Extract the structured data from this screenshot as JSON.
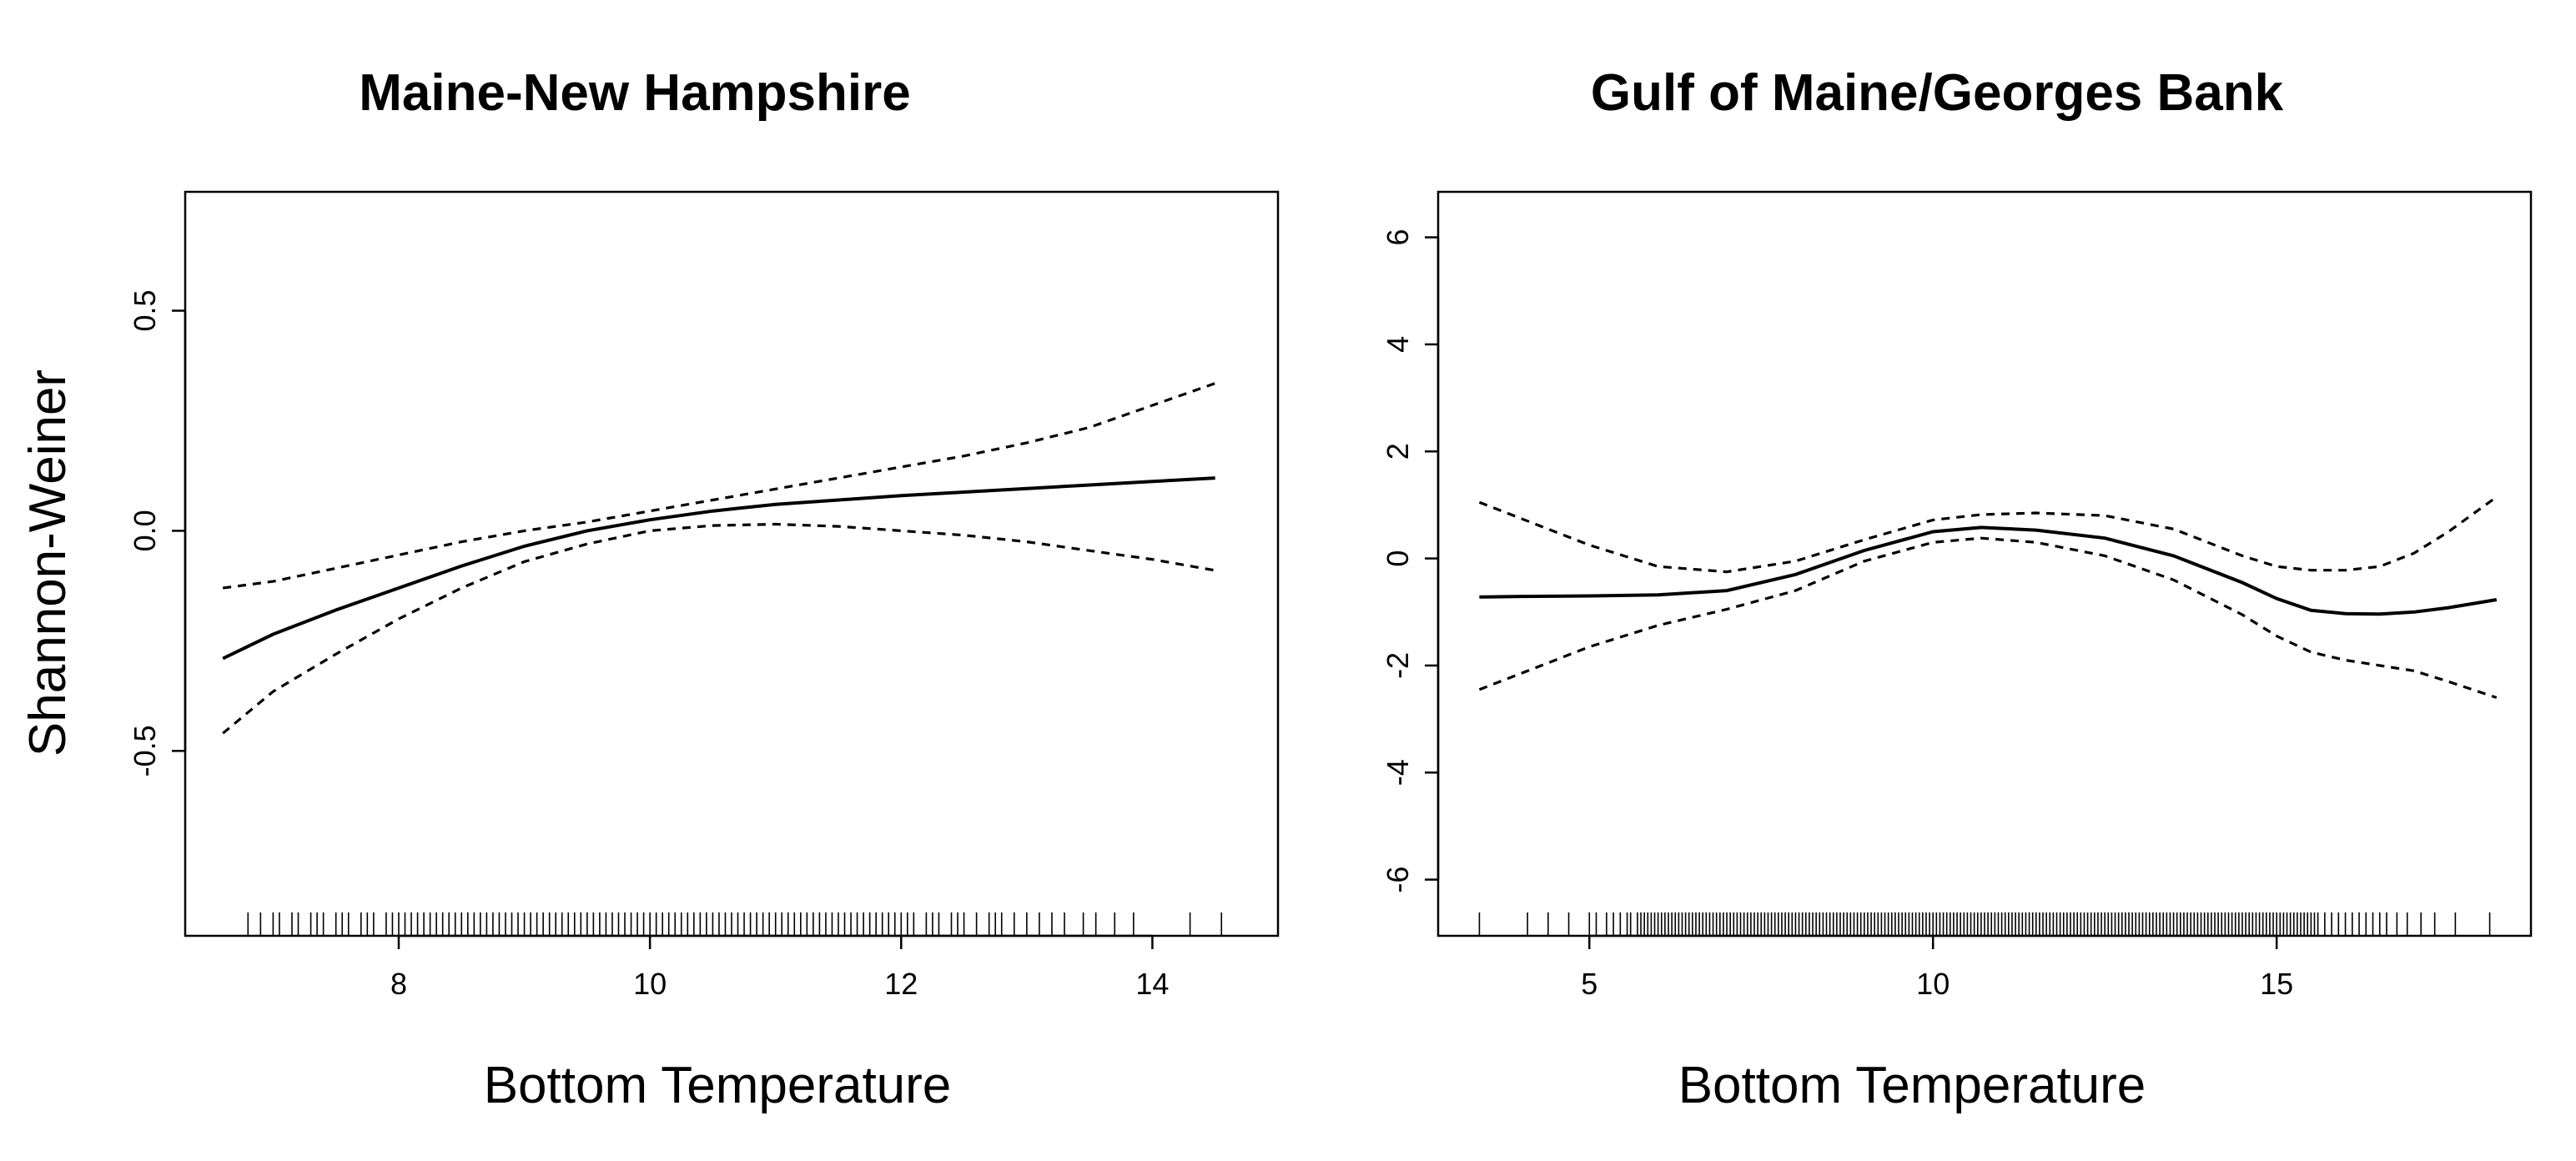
{
  "figure": {
    "ylabel": "Shannon-Weiner"
  },
  "chart_data": [
    {
      "type": "line",
      "title": "Maine-New Hampshire",
      "xlabel": "Bottom Temperature",
      "ylabel": "Shannon-Weiner",
      "xlim": [
        6.3,
        15.0
      ],
      "ylim": [
        -0.92,
        0.77
      ],
      "x_ticks": [
        8,
        10,
        12,
        14
      ],
      "y_ticks": [
        -0.5,
        0.0,
        0.5
      ],
      "x_tick_labels": [
        "8",
        "10",
        "12",
        "14"
      ],
      "y_tick_labels": [
        "-0.5",
        "0.0",
        "0.5"
      ],
      "series": [
        {
          "style": "solid",
          "x": [
            6.6,
            7.0,
            7.5,
            8.0,
            8.5,
            9.0,
            9.5,
            10.0,
            10.5,
            11.0,
            11.5,
            12.0,
            12.5,
            13.0,
            13.5,
            14.0,
            14.5
          ],
          "y": [
            -0.29,
            -0.235,
            -0.18,
            -0.13,
            -0.08,
            -0.035,
            0.0,
            0.025,
            0.045,
            0.06,
            0.07,
            0.08,
            0.088,
            0.096,
            0.104,
            0.112,
            0.12
          ]
        },
        {
          "style": "dashed",
          "x": [
            6.6,
            7.0,
            7.5,
            8.0,
            8.5,
            9.0,
            9.5,
            10.0,
            10.5,
            11.0,
            11.5,
            12.0,
            12.5,
            13.0,
            13.5,
            14.0,
            14.5
          ],
          "y": [
            -0.13,
            -0.115,
            -0.085,
            -0.055,
            -0.025,
            0.0,
            0.02,
            0.045,
            0.07,
            0.095,
            0.12,
            0.145,
            0.17,
            0.2,
            0.235,
            0.285,
            0.335
          ]
        },
        {
          "style": "dashed",
          "x": [
            6.6,
            7.0,
            7.5,
            8.0,
            8.5,
            9.0,
            9.5,
            10.0,
            10.5,
            11.0,
            11.5,
            12.0,
            12.5,
            13.0,
            13.5,
            14.0,
            14.5
          ],
          "y": [
            -0.46,
            -0.365,
            -0.28,
            -0.2,
            -0.13,
            -0.07,
            -0.03,
            0.0,
            0.012,
            0.015,
            0.01,
            0.0,
            -0.01,
            -0.025,
            -0.045,
            -0.065,
            -0.09
          ]
        }
      ],
      "rug_x": [
        6.8,
        6.9,
        7.0,
        7.05,
        7.15,
        7.2,
        7.3,
        7.35,
        7.4,
        7.5,
        7.55,
        7.6,
        7.7,
        7.75,
        7.8,
        7.9,
        7.95,
        8.0,
        8.05,
        8.1,
        8.15,
        8.2,
        8.25,
        8.3,
        8.35,
        8.4,
        8.45,
        8.5,
        8.55,
        8.6,
        8.65,
        8.7,
        8.75,
        8.8,
        8.85,
        8.9,
        8.95,
        9.0,
        9.05,
        9.1,
        9.15,
        9.2,
        9.25,
        9.3,
        9.35,
        9.4,
        9.45,
        9.5,
        9.55,
        9.6,
        9.65,
        9.7,
        9.75,
        9.8,
        9.85,
        9.9,
        9.95,
        10.0,
        10.05,
        10.1,
        10.15,
        10.2,
        10.25,
        10.3,
        10.35,
        10.4,
        10.45,
        10.5,
        10.55,
        10.6,
        10.65,
        10.7,
        10.75,
        10.8,
        10.85,
        10.9,
        10.95,
        11.0,
        11.05,
        11.1,
        11.15,
        11.2,
        11.25,
        11.3,
        11.35,
        11.4,
        11.45,
        11.5,
        11.55,
        11.6,
        11.65,
        11.7,
        11.75,
        11.8,
        11.85,
        11.9,
        11.95,
        12.0,
        12.05,
        12.1,
        12.2,
        12.25,
        12.3,
        12.4,
        12.45,
        12.5,
        12.6,
        12.7,
        12.75,
        12.8,
        12.9,
        13.0,
        13.1,
        13.2,
        13.3,
        13.45,
        13.55,
        13.7,
        13.85,
        14.3,
        14.55
      ]
    },
    {
      "type": "line",
      "title": "Gulf of Maine/Georges Bank",
      "xlabel": "Bottom Temperature",
      "xlim": [
        2.8,
        18.7
      ],
      "ylim": [
        -7.05,
        6.85
      ],
      "x_ticks": [
        5,
        10,
        15
      ],
      "y_ticks": [
        -6,
        -4,
        -2,
        0,
        2,
        4,
        6
      ],
      "x_tick_labels": [
        "5",
        "10",
        "15"
      ],
      "y_tick_labels": [
        "-6",
        "-4",
        "-2",
        "0",
        "2",
        "4",
        "6"
      ],
      "series": [
        {
          "style": "solid",
          "x": [
            3.4,
            4.0,
            5.0,
            6.0,
            7.0,
            8.0,
            9.0,
            10.0,
            10.7,
            11.5,
            12.5,
            13.5,
            14.5,
            15.0,
            15.5,
            16.0,
            16.5,
            17.0,
            17.5,
            18.2
          ],
          "y": [
            -0.72,
            -0.71,
            -0.7,
            -0.68,
            -0.6,
            -0.3,
            0.15,
            0.5,
            0.58,
            0.53,
            0.38,
            0.05,
            -0.45,
            -0.75,
            -0.97,
            -1.03,
            -1.04,
            -1.0,
            -0.92,
            -0.77
          ]
        },
        {
          "style": "dashed",
          "x": [
            3.4,
            4.0,
            5.0,
            6.0,
            7.0,
            8.0,
            9.0,
            10.0,
            10.7,
            11.5,
            12.5,
            13.5,
            14.5,
            15.0,
            15.5,
            16.0,
            16.5,
            17.0,
            17.5,
            18.2
          ],
          "y": [
            1.05,
            0.75,
            0.25,
            -0.15,
            -0.25,
            -0.05,
            0.35,
            0.72,
            0.82,
            0.85,
            0.8,
            0.55,
            0.05,
            -0.15,
            -0.22,
            -0.22,
            -0.15,
            0.1,
            0.5,
            1.15
          ]
        },
        {
          "style": "dashed",
          "x": [
            3.4,
            4.0,
            5.0,
            6.0,
            7.0,
            8.0,
            9.0,
            10.0,
            10.7,
            11.5,
            12.5,
            13.5,
            14.5,
            15.0,
            15.5,
            16.0,
            16.5,
            17.0,
            17.5,
            18.2
          ],
          "y": [
            -2.45,
            -2.15,
            -1.65,
            -1.25,
            -0.95,
            -0.6,
            -0.05,
            0.3,
            0.38,
            0.3,
            0.05,
            -0.4,
            -1.05,
            -1.45,
            -1.75,
            -1.9,
            -2.0,
            -2.1,
            -2.3,
            -2.6
          ]
        }
      ],
      "rug_x": [
        3.4,
        4.1,
        4.4,
        4.7,
        5.0,
        5.1,
        5.25,
        5.35,
        5.45,
        5.55,
        5.6,
        5.7,
        5.75,
        5.8,
        5.85,
        5.9,
        5.95,
        6.0,
        6.05,
        6.1,
        6.15,
        6.2,
        6.25,
        6.3,
        6.35,
        6.4,
        6.45,
        6.5,
        6.55,
        6.6,
        6.65,
        6.7,
        6.75,
        6.8,
        6.85,
        6.9,
        6.95,
        7.0,
        7.05,
        7.1,
        7.15,
        7.2,
        7.25,
        7.3,
        7.35,
        7.4,
        7.45,
        7.5,
        7.55,
        7.6,
        7.65,
        7.7,
        7.75,
        7.8,
        7.85,
        7.9,
        7.95,
        8.0,
        8.05,
        8.1,
        8.15,
        8.2,
        8.25,
        8.3,
        8.35,
        8.4,
        8.45,
        8.5,
        8.55,
        8.6,
        8.65,
        8.7,
        8.75,
        8.8,
        8.85,
        8.9,
        8.95,
        9.0,
        9.05,
        9.1,
        9.15,
        9.2,
        9.25,
        9.3,
        9.35,
        9.4,
        9.45,
        9.5,
        9.55,
        9.6,
        9.65,
        9.7,
        9.75,
        9.8,
        9.85,
        9.9,
        9.95,
        10.0,
        10.05,
        10.1,
        10.15,
        10.2,
        10.25,
        10.3,
        10.35,
        10.4,
        10.45,
        10.5,
        10.55,
        10.6,
        10.65,
        10.7,
        10.75,
        10.8,
        10.85,
        10.9,
        10.95,
        11.0,
        11.05,
        11.1,
        11.15,
        11.2,
        11.25,
        11.3,
        11.35,
        11.4,
        11.45,
        11.5,
        11.55,
        11.6,
        11.65,
        11.7,
        11.75,
        11.8,
        11.85,
        11.9,
        11.95,
        12.0,
        12.05,
        12.1,
        12.15,
        12.2,
        12.25,
        12.3,
        12.35,
        12.4,
        12.45,
        12.5,
        12.55,
        12.6,
        12.65,
        12.7,
        12.75,
        12.8,
        12.85,
        12.9,
        12.95,
        13.0,
        13.05,
        13.1,
        13.15,
        13.2,
        13.25,
        13.3,
        13.35,
        13.4,
        13.45,
        13.5,
        13.55,
        13.6,
        13.65,
        13.7,
        13.75,
        13.8,
        13.85,
        13.9,
        13.95,
        14.0,
        14.05,
        14.1,
        14.15,
        14.2,
        14.25,
        14.3,
        14.35,
        14.4,
        14.45,
        14.5,
        14.55,
        14.6,
        14.65,
        14.7,
        14.75,
        14.8,
        14.85,
        14.9,
        14.95,
        15.0,
        15.05,
        15.1,
        15.15,
        15.2,
        15.25,
        15.3,
        15.35,
        15.4,
        15.45,
        15.5,
        15.55,
        15.6,
        15.7,
        15.8,
        15.9,
        16.0,
        16.1,
        16.2,
        16.3,
        16.4,
        16.5,
        16.6,
        16.75,
        16.9,
        17.1,
        17.3,
        17.6,
        18.1
      ]
    }
  ]
}
